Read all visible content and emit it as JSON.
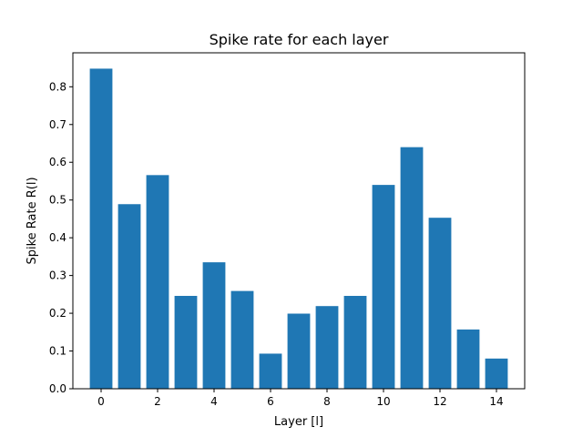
{
  "chart_data": {
    "type": "bar",
    "title": "Spike rate for each layer",
    "xlabel": "Layer [l]",
    "ylabel": "Spike Rate R(l)",
    "categories": [
      0,
      1,
      2,
      3,
      4,
      5,
      6,
      7,
      8,
      9,
      10,
      11,
      12,
      13,
      14
    ],
    "values": [
      0.848,
      0.489,
      0.566,
      0.246,
      0.335,
      0.259,
      0.093,
      0.199,
      0.219,
      0.246,
      0.54,
      0.64,
      0.453,
      0.157,
      0.08
    ],
    "xlim": [
      -1.0,
      15.0
    ],
    "ylim": [
      0,
      0.89
    ],
    "xticks": [
      0,
      2,
      4,
      6,
      8,
      10,
      12,
      14
    ],
    "yticks": [
      0.0,
      0.1,
      0.2,
      0.3,
      0.4,
      0.5,
      0.6,
      0.7,
      0.8
    ],
    "bar_color": "#1f77b4",
    "grid": false,
    "legend": "none"
  }
}
